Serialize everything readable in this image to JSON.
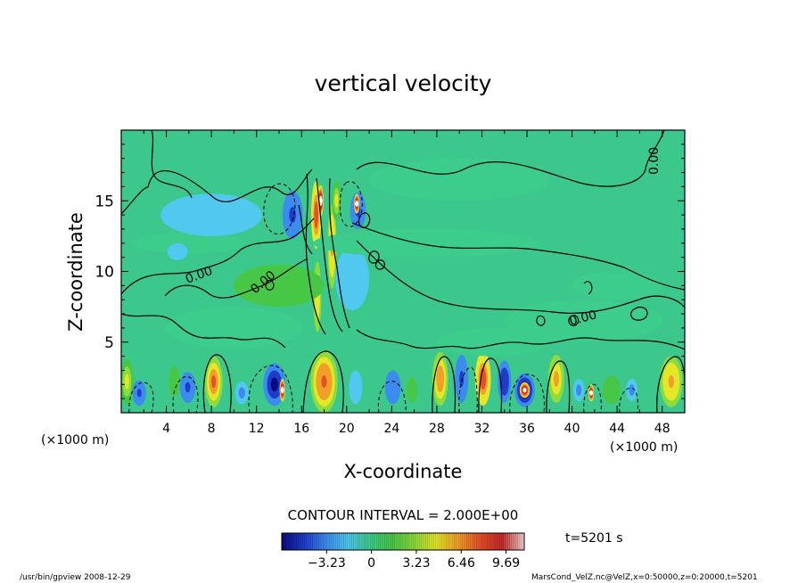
{
  "chart_data": {
    "type": "heatmap",
    "title": "vertical velocity",
    "xlabel": "X-coordinate",
    "ylabel": "Z-coordinate",
    "x_unit_left": "(×1000 m)",
    "x_unit_right": "(×1000 m)",
    "xlim": [
      0,
      50
    ],
    "ylim": [
      0,
      20
    ],
    "x_ticks": [
      "4",
      "8",
      "12",
      "16",
      "20",
      "24",
      "28",
      "32",
      "36",
      "40",
      "44",
      "48"
    ],
    "y_ticks": [
      "5",
      "10",
      "15"
    ],
    "contour_labels": [
      "0.00",
      "0.00",
      "0.00",
      "0.00"
    ],
    "contour_interval_text": "CONTOUR INTERVAL = 2.000E+00",
    "colorbar_ticks": [
      "-3.23",
      "0",
      "3.23",
      "6.46",
      "9.69"
    ],
    "colorbar_range": [
      -6.46,
      11.0
    ],
    "time_label": "t=5201 s",
    "colormap": [
      "#0a0a80",
      "#1e3cc8",
      "#3c8cf0",
      "#50c8f0",
      "#3ccc8c",
      "#46c846",
      "#8cdc3c",
      "#e6e628",
      "#f0a028",
      "#e65028",
      "#c82828",
      "#f0d2d2"
    ],
    "background_color": "#3cc88c",
    "features": [
      {
        "x": 0.5,
        "z": 2.2,
        "w": 1.2,
        "h": 3.2,
        "value": 4.0
      },
      {
        "x": 1.6,
        "z": 1.4,
        "w": 1.2,
        "h": 1.8,
        "value": -4.5
      },
      {
        "x": 4.7,
        "z": 2.2,
        "w": 1.0,
        "h": 2.2,
        "value": 2.0
      },
      {
        "x": 5.9,
        "z": 1.8,
        "w": 1.4,
        "h": 2.2,
        "value": -4.0
      },
      {
        "x": 8.2,
        "z": 2.2,
        "w": 1.6,
        "h": 3.6,
        "value": 7.0
      },
      {
        "x": 10.7,
        "z": 1.4,
        "w": 1.2,
        "h": 1.6,
        "value": -2.5
      },
      {
        "x": 13.6,
        "z": 2.0,
        "w": 2.0,
        "h": 3.0,
        "value": -5.5
      },
      {
        "x": 14.3,
        "z": 1.6,
        "w": 0.5,
        "h": 1.6,
        "value": 11.0
      },
      {
        "x": 18.0,
        "z": 2.2,
        "w": 2.4,
        "h": 4.4,
        "value": 7.5
      },
      {
        "x": 20.8,
        "z": 1.8,
        "w": 1.2,
        "h": 2.4,
        "value": -2.0
      },
      {
        "x": 24.1,
        "z": 1.8,
        "w": 1.4,
        "h": 2.4,
        "value": -3.5
      },
      {
        "x": 25.8,
        "z": 1.6,
        "w": 1.0,
        "h": 1.8,
        "value": 2.0
      },
      {
        "x": 28.3,
        "z": 2.4,
        "w": 1.4,
        "h": 3.8,
        "value": 6.5
      },
      {
        "x": 30.2,
        "z": 2.4,
        "w": 1.2,
        "h": 3.4,
        "value": -4.0
      },
      {
        "x": 32.1,
        "z": 2.4,
        "w": 1.4,
        "h": 3.8,
        "value": 8.0
      },
      {
        "x": 34.0,
        "z": 2.2,
        "w": 1.2,
        "h": 3.0,
        "value": -5.0
      },
      {
        "x": 35.8,
        "z": 1.6,
        "w": 1.8,
        "h": 2.4,
        "value": -6.5
      },
      {
        "x": 35.8,
        "z": 1.6,
        "w": 0.9,
        "h": 1.1,
        "value": 11.0
      },
      {
        "x": 38.6,
        "z": 2.4,
        "w": 1.4,
        "h": 3.4,
        "value": 5.5
      },
      {
        "x": 40.6,
        "z": 1.6,
        "w": 1.0,
        "h": 1.6,
        "value": -3.0
      },
      {
        "x": 41.7,
        "z": 1.4,
        "w": 0.5,
        "h": 1.2,
        "value": 11.0
      },
      {
        "x": 43.5,
        "z": 1.6,
        "w": 1.6,
        "h": 2.0,
        "value": 1.5
      },
      {
        "x": 45.3,
        "z": 1.6,
        "w": 1.0,
        "h": 1.6,
        "value": -3.0
      },
      {
        "x": 48.8,
        "z": 2.2,
        "w": 2.0,
        "h": 3.6,
        "value": 6.0
      },
      {
        "x": 15.2,
        "z": 14.0,
        "w": 1.8,
        "h": 3.4,
        "value": -4.0
      },
      {
        "x": 21.0,
        "z": 14.3,
        "w": 1.4,
        "h": 2.6,
        "value": -4.0
      },
      {
        "x": 17.3,
        "z": 14.0,
        "w": 0.9,
        "h": 4.8,
        "value": 8.0
      },
      {
        "x": 17.7,
        "z": 15.0,
        "w": 0.5,
        "h": 2.2,
        "value": 11.0
      },
      {
        "x": 18.7,
        "z": 11.8,
        "w": 0.8,
        "h": 6.0,
        "value": 6.0
      },
      {
        "x": 19.1,
        "z": 15.0,
        "w": 0.8,
        "h": 2.8,
        "value": 4.0
      },
      {
        "x": 20.9,
        "z": 14.8,
        "w": 0.5,
        "h": 1.4,
        "value": 11.0
      },
      {
        "x": 17.4,
        "z": 8.2,
        "w": 0.7,
        "h": 5.0,
        "value": 5.0
      },
      {
        "x": 14.0,
        "z": 9.0,
        "w": 8.0,
        "h": 3.0,
        "value": 1.2
      },
      {
        "x": 20.5,
        "z": 9.5,
        "w": 3.0,
        "h": 4.5,
        "value": -1.5
      },
      {
        "x": 27.0,
        "z": 12.0,
        "w": 20.0,
        "h": 2.0,
        "value": 0.8
      },
      {
        "x": 6.0,
        "z": 12.0,
        "w": 10.0,
        "h": 1.5,
        "value": 0.8
      },
      {
        "x": 5.0,
        "z": 11.4,
        "w": 1.8,
        "h": 1.2,
        "value": -2.0
      },
      {
        "x": 8.0,
        "z": 14.0,
        "w": 9.0,
        "h": 3.0,
        "value": -0.8
      },
      {
        "x": 30.0,
        "z": 16.5,
        "w": 16.0,
        "h": 3.0,
        "value": -0.6
      },
      {
        "x": 41.0,
        "z": 6.5,
        "w": 14.0,
        "h": 3.0,
        "value": 0.8
      },
      {
        "x": 10.0,
        "z": 6.0,
        "w": 12.0,
        "h": 3.0,
        "value": 0.8
      },
      {
        "x": 44.0,
        "z": 9.0,
        "w": 8.0,
        "h": 2.0,
        "value": -0.6
      },
      {
        "x": 33.0,
        "z": 5.0,
        "w": 10.0,
        "h": 2.0,
        "value": -0.5
      }
    ]
  },
  "footer": {
    "left": "/usr/bin/gpview   2008-12-29",
    "right": "MarsCond_VelZ.nc@VelZ,x=0:50000,z=0:20000,t=5201"
  }
}
